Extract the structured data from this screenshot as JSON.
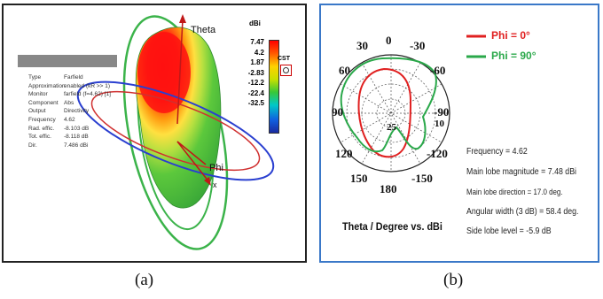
{
  "captions": {
    "a": "(a)",
    "b": "(b)"
  },
  "panel_a": {
    "info": [
      {
        "k": "Type",
        "v": "Farfield"
      },
      {
        "k": "Approximation",
        "v": "enabled (kR >> 1)"
      },
      {
        "k": "Monitor",
        "v": "farfield (f=4.62) [1]"
      },
      {
        "k": "Component",
        "v": "Abs"
      },
      {
        "k": "Output",
        "v": "Directivity"
      },
      {
        "k": "Frequency",
        "v": "4.62"
      },
      {
        "k": "Rad. effic.",
        "v": "-8.103 dB"
      },
      {
        "k": "Tot. effic.",
        "v": "-8.118 dB"
      },
      {
        "k": "Dir.",
        "v": "7.486 dBi"
      }
    ],
    "colorbar": {
      "unit": "dBi",
      "labels": [
        "7.47",
        "4.2",
        "1.87",
        "-2.83",
        "-12.2",
        "-22.4",
        "-32.5"
      ]
    },
    "logo": "CST",
    "axes": {
      "theta": "Theta",
      "phi": "Phi",
      "x": "x"
    }
  },
  "panel_b": {
    "legend": [
      {
        "label": "Phi = 0°",
        "color": "#e02020"
      },
      {
        "label": "Phi = 90°",
        "color": "#2aa84a"
      }
    ],
    "angle_labels": {
      "top": "0",
      "top_left": "30",
      "top_right": "-30",
      "left_upper": "60",
      "right_upper": "-60",
      "left": "90",
      "right": "-90",
      "left_lower": "120",
      "right_lower": "-120",
      "bottom_left": "150",
      "bottom": "180",
      "bottom_right": "-150"
    },
    "radial_labels": {
      "r10": "10",
      "r25": "25"
    },
    "stats": [
      "Frequency = 4.62",
      "Main lobe magnitude = 7.48 dBi",
      "Main lobe direction = 17.0 deg.",
      "Angular width (3 dB) = 58.4 deg.",
      "Side lobe level = -5.9 dB"
    ],
    "plot_caption": "Theta / Degree vs. dBi"
  }
}
